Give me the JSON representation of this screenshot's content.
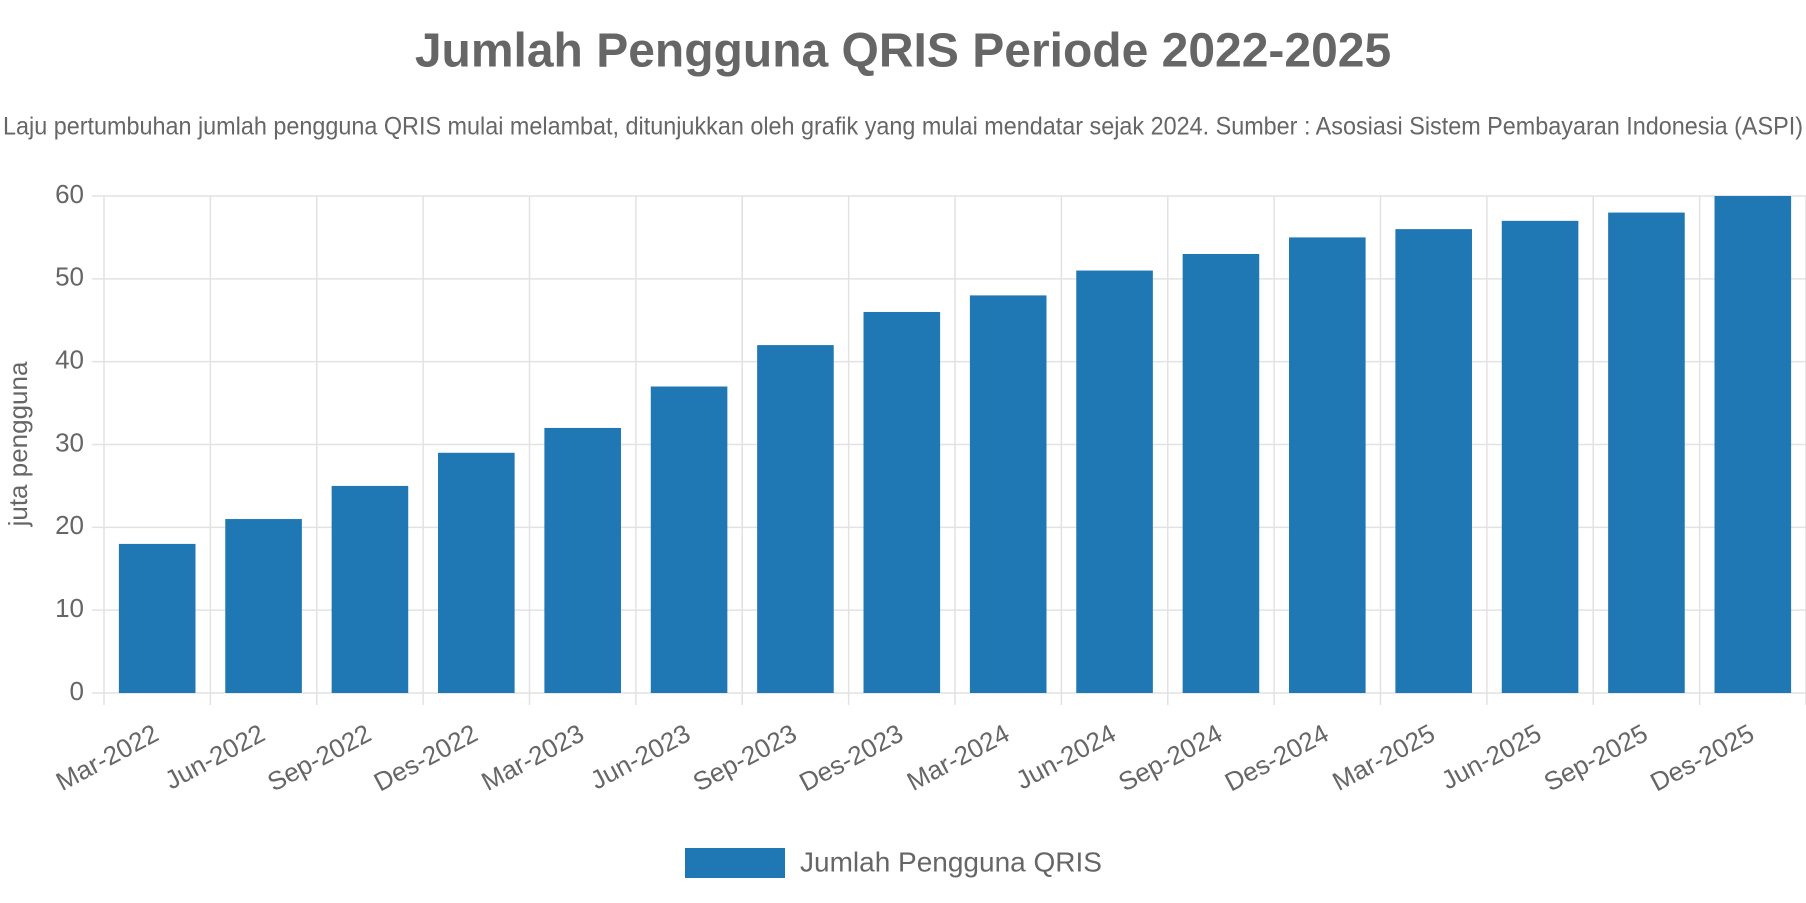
{
  "chart_data": {
    "type": "bar",
    "title": "Jumlah Pengguna QRIS Periode 2022-2025",
    "subtitle": "Laju pertumbuhan jumlah pengguna QRIS mulai melambat, ditunjukkan oleh grafik yang mulai mendatar sejak 2024. Sumber : Asosiasi Sistem Pembayaran Indonesia (ASPI)",
    "y_label": "juta pengguna",
    "categories": [
      "Mar-2022",
      "Jun-2022",
      "Sep-2022",
      "Des-2022",
      "Mar-2023",
      "Jun-2023",
      "Sep-2023",
      "Des-2023",
      "Mar-2024",
      "Jun-2024",
      "Sep-2024",
      "Des-2024",
      "Mar-2025",
      "Jun-2025",
      "Sep-2025",
      "Des-2025"
    ],
    "series": [
      {
        "name": "Jumlah Pengguna QRIS",
        "color": "#1f77b4",
        "values": [
          18,
          21,
          25,
          29,
          32,
          37,
          42,
          46,
          48,
          51,
          53,
          55,
          56,
          57,
          58,
          60
        ]
      }
    ],
    "ylim": [
      0,
      60
    ],
    "yticks": [
      0,
      10,
      20,
      30,
      40,
      50,
      60
    ],
    "grid": true,
    "legend": "bottom"
  }
}
